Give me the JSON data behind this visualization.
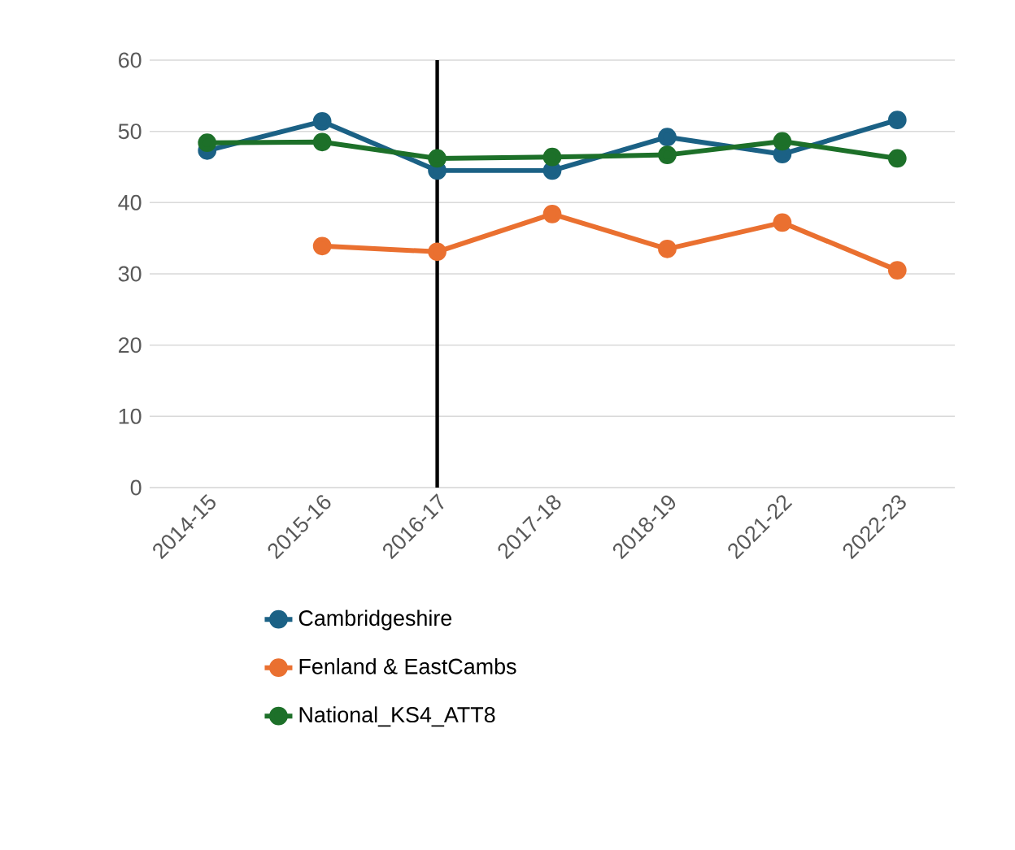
{
  "chart_data": {
    "type": "line",
    "categories": [
      "2014-15",
      "2015-16",
      "2016-17",
      "2017-18",
      "2018-19",
      "2021-22",
      "2022-23"
    ],
    "series": [
      {
        "name": "Cambridgeshire",
        "color": "#1b6185",
        "values": [
          47.3,
          51.4,
          44.5,
          44.5,
          49.2,
          46.8,
          51.6
        ]
      },
      {
        "name": "Fenland & EastCambs",
        "color": "#ea7030",
        "values": [
          null,
          33.9,
          33.1,
          38.4,
          33.5,
          37.2,
          30.5
        ]
      },
      {
        "name": "National_KS4_ATT8",
        "color": "#1d7029",
        "values": [
          48.4,
          48.5,
          46.2,
          46.4,
          46.7,
          48.6,
          46.2
        ]
      }
    ],
    "ylim": [
      0,
      60
    ],
    "yticks": [
      0,
      10,
      20,
      30,
      40,
      50,
      60
    ],
    "grid": "y",
    "legend": "bottom",
    "marker": "circle",
    "line_style": "solid",
    "ref_lines": [
      {
        "axis": "x",
        "value": "2016-17",
        "color": "#000000",
        "line_style": "solid"
      }
    ]
  }
}
